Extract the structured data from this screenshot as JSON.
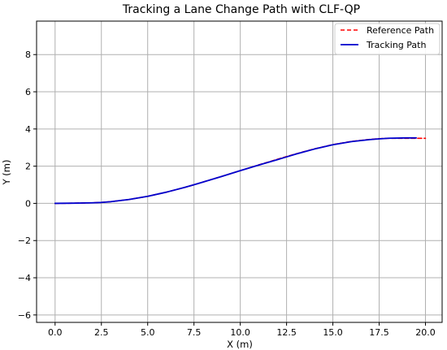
{
  "chart_data": {
    "type": "line",
    "title": "Tracking a Lane Change Path with CLF-QP",
    "xlabel": "X (m)",
    "ylabel": "Y (m)",
    "xlim": [
      -1.0,
      20.9
    ],
    "ylim": [
      -6.4,
      9.8
    ],
    "xticks": [
      0.0,
      2.5,
      5.0,
      7.5,
      10.0,
      12.5,
      15.0,
      17.5,
      20.0
    ],
    "xtick_labels": [
      "0.0",
      "2.5",
      "5.0",
      "7.5",
      "10.0",
      "12.5",
      "15.0",
      "17.5",
      "20.0"
    ],
    "yticks": [
      -6,
      -4,
      -2,
      0,
      2,
      4,
      6,
      8
    ],
    "ytick_labels": [
      "−6",
      "−4",
      "−2",
      "0",
      "2",
      "4",
      "6",
      "8"
    ],
    "grid": true,
    "legend_position": "upper right",
    "series": [
      {
        "name": "Reference Path",
        "color": "#ff0000",
        "style": "dashed",
        "x": [
          0,
          1,
          2,
          2.5,
          3,
          4,
          5,
          6,
          7,
          7.5,
          8,
          9,
          10,
          11,
          12,
          12.5,
          13,
          14,
          15,
          16,
          17,
          17.5,
          18,
          19,
          20
        ],
        "y": [
          0.0,
          0.01,
          0.03,
          0.05,
          0.09,
          0.21,
          0.38,
          0.6,
          0.86,
          1.0,
          1.15,
          1.45,
          1.76,
          2.07,
          2.37,
          2.52,
          2.66,
          2.93,
          3.16,
          3.33,
          3.44,
          3.48,
          3.5,
          3.5,
          3.5
        ]
      },
      {
        "name": "Tracking Path",
        "color": "#0000cd",
        "style": "solid",
        "x": [
          0,
          1,
          2,
          2.5,
          3,
          4,
          5,
          6,
          7,
          7.5,
          8,
          9,
          10,
          11,
          12,
          12.5,
          13,
          14,
          15,
          16,
          17,
          17.5,
          18,
          19,
          19.5
        ],
        "y": [
          0.0,
          0.01,
          0.03,
          0.05,
          0.09,
          0.21,
          0.38,
          0.6,
          0.86,
          1.0,
          1.15,
          1.45,
          1.76,
          2.06,
          2.35,
          2.5,
          2.65,
          2.92,
          3.15,
          3.32,
          3.43,
          3.47,
          3.5,
          3.52,
          3.52
        ]
      }
    ]
  }
}
